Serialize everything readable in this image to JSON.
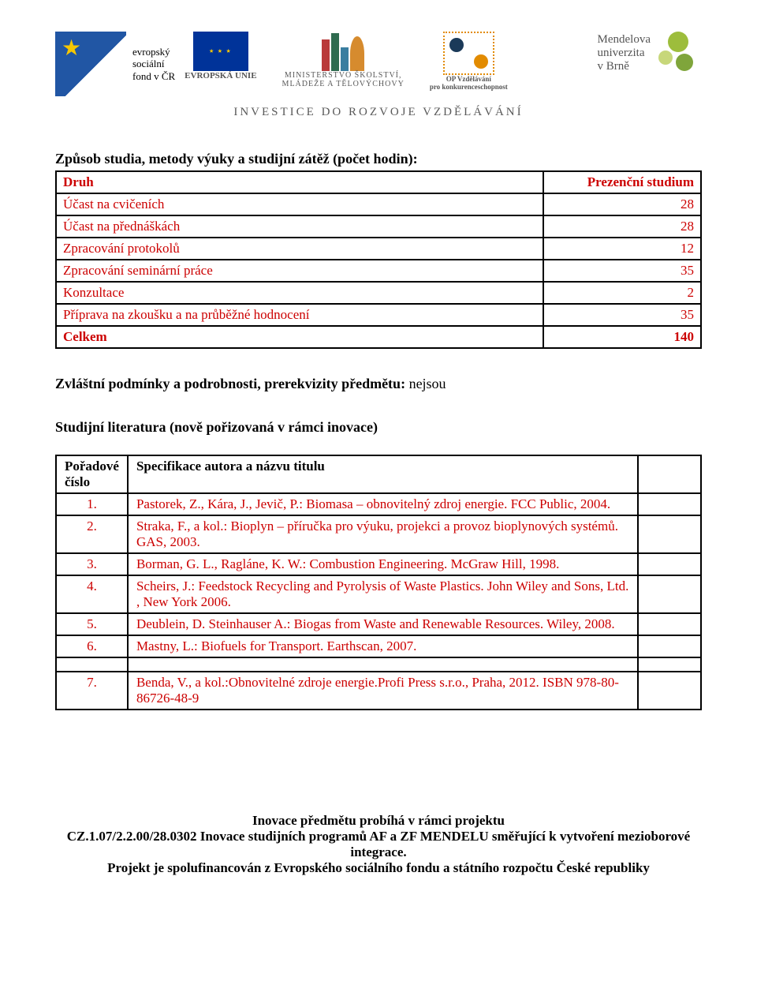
{
  "header": {
    "esf_text1": "evropský",
    "esf_text2": "sociální",
    "esf_text3": "fond v ČR",
    "eu_label": "EVROPSKÁ UNIE",
    "msmt_line1": "MINISTERSTVO ŠKOLSTVÍ,",
    "msmt_line2": "MLÁDEŽE A TĚLOVÝCHOVY",
    "opvk_line1": "OP Vzdělávání",
    "opvk_line2": "pro konkurenceschopnost",
    "mendelu_line1": "Mendelova",
    "mendelu_line2": "univerzita",
    "mendelu_line3": "v Brně",
    "invest": "INVESTICE DO ROZVOJE VZDĚLÁVÁNÍ"
  },
  "study": {
    "title": "Způsob studia, metody výuky a studijní zátěž (počet hodin):",
    "col_druh": "Druh",
    "col_val": "Prezenční studium",
    "rows": [
      {
        "label": "Účast na cvičeních",
        "value": "28"
      },
      {
        "label": "Účast na přednáškách",
        "value": "28"
      },
      {
        "label": "Zpracování protokolů",
        "value": "12"
      },
      {
        "label": "Zpracování seminární práce",
        "value": "35"
      },
      {
        "label": "Konzultace",
        "value": "2"
      },
      {
        "label": "Příprava na zkoušku a na průběžné hodnocení",
        "value": "35"
      }
    ],
    "celkem_label": "Celkem",
    "celkem_value": "140"
  },
  "prereq": {
    "label": "Zvláštní podmínky a podrobnosti, prerekvizity předmětu:",
    "value": "nejsou"
  },
  "lit": {
    "heading": "Studijní literatura (nově pořizovaná v rámci inovace)",
    "col_num": "Pořadové číslo",
    "col_spec": "Specifikace autora a názvu titulu",
    "rows": [
      {
        "n": "1.",
        "spec": "Pastorek, Z., Kára, J., Jevič, P.: Biomasa – obnovitelný zdroj energie. FCC Public, 2004."
      },
      {
        "n": "2.",
        "spec": "Straka, F., a kol.: Bioplyn – příručka pro výuku, projekci a provoz bioplynových systémů. GAS, 2003."
      },
      {
        "n": "3.",
        "spec": "Borman, G. L., Ragláne, K. W.: Combustion Engineering. McGraw Hill, 1998."
      },
      {
        "n": "4.",
        "spec": "Scheirs, J.: Feedstock Recycling and Pyrolysis of Waste Plastics. John Wiley and Sons, Ltd. , New York 2006."
      },
      {
        "n": "5.",
        "spec": "Deublein, D. Steinhauser A.: Biogas from Waste and Renewable Resources. Wiley, 2008."
      },
      {
        "n": "6.",
        "spec": "Mastny, L.: Biofuels for Transport. Earthscan, 2007."
      },
      {
        "n": "7.",
        "spec": "Benda, V., a kol.:Obnovitelné zdroje energie.Profi Press s.r.o., Praha, 2012. ISBN 978-80-86726-48-9"
      }
    ]
  },
  "footer": {
    "line1": "Inovace předmětu probíhá v rámci projektu",
    "line2": "CZ.1.07/2.2.00/28.0302 Inovace studijních programů AF a ZF MENDELU směřující k vytvoření mezioborové integrace.",
    "line3": "Projekt je spolufinancován z Evropského sociálního fondu a státního rozpočtu České republiky"
  },
  "colors": {
    "red": "#cc0000",
    "black": "#000000",
    "border": "#000000"
  }
}
